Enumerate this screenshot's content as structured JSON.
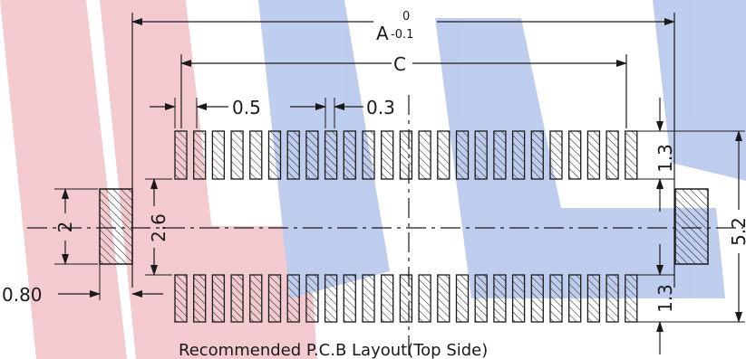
{
  "drawing": {
    "caption": "Recommended P.C.B Layout(Top Side)",
    "dim_a": {
      "label": "A",
      "upper_tol": "0",
      "lower_tol": "-0.1"
    },
    "dim_c": "C",
    "pitch": "0.5",
    "pad_width": "0.3",
    "row_height_top": "1.3",
    "row_height_bottom": "1.3",
    "row_gap": "2.6",
    "side_pad_height": "2",
    "side_pad_width": "0.80",
    "overall_height": "5.2",
    "pads_per_row": 25
  },
  "colors": {
    "line": "#1a1a1a",
    "watermark_red": "#e8a0a8",
    "watermark_blue": "#8aa6e0"
  }
}
